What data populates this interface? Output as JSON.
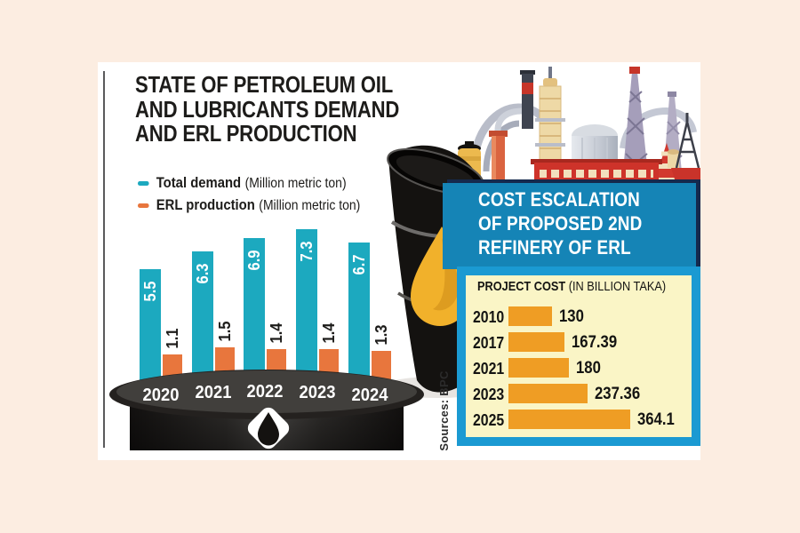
{
  "colors": {
    "background": "#fcede1",
    "card": "#ffffff",
    "demand": "#1ca9bf",
    "production": "#e8763d",
    "cost_bar": "#ef9d24",
    "header_bg": "#1584b6",
    "header_shadow": "#15294d",
    "frame_border": "#1b9ad2",
    "panel_bg": "#faf5c6"
  },
  "infographic": {
    "title_lines": [
      "STATE OF PETROLEUM OIL",
      "AND LUBRICANTS DEMAND",
      "AND ERL PRODUCTION"
    ],
    "legend": [
      {
        "label": "Total demand",
        "unit": "(Million metric ton)"
      },
      {
        "label": "ERL production",
        "unit": "(Million metric ton)"
      }
    ],
    "cost_header_lines": [
      "COST ESCALATION",
      "OF PROPOSED 2ND",
      "REFINERY OF ERL"
    ],
    "cost_subtitle_bold": "PROJECT COST",
    "cost_subtitle_rest": " (IN BILLION TAKA)",
    "source": "Sources: BPC"
  },
  "chart_data": [
    {
      "type": "bar",
      "title": "STATE OF PETROLEUM OIL AND LUBRICANTS DEMAND AND ERL PRODUCTION",
      "categories": [
        "2020",
        "2021",
        "2022",
        "2023",
        "2024"
      ],
      "series": [
        {
          "name": "Total demand (Million metric ton)",
          "color": "#1ca9bf",
          "values": [
            5.5,
            6.3,
            6.9,
            7.3,
            6.7
          ]
        },
        {
          "name": "ERL production (Million metric ton)",
          "color": "#e8763d",
          "values": [
            1.1,
            1.5,
            1.4,
            1.4,
            1.3
          ]
        }
      ],
      "grid": false,
      "value_labels": true,
      "legend_position": "top-left",
      "ylabel": "Million metric ton"
    },
    {
      "type": "bar",
      "orientation": "horizontal",
      "title": "COST ESCALATION OF PROPOSED 2ND REFINERY OF ERL",
      "subtitle": "PROJECT COST (IN BILLION TAKA)",
      "categories": [
        "2010",
        "2017",
        "2021",
        "2023",
        "2025"
      ],
      "values": [
        130,
        167.39,
        180,
        237.36,
        364.1
      ],
      "bar_color": "#ef9d24",
      "xlim": [
        0,
        400
      ],
      "grid": false,
      "value_labels": true
    }
  ]
}
